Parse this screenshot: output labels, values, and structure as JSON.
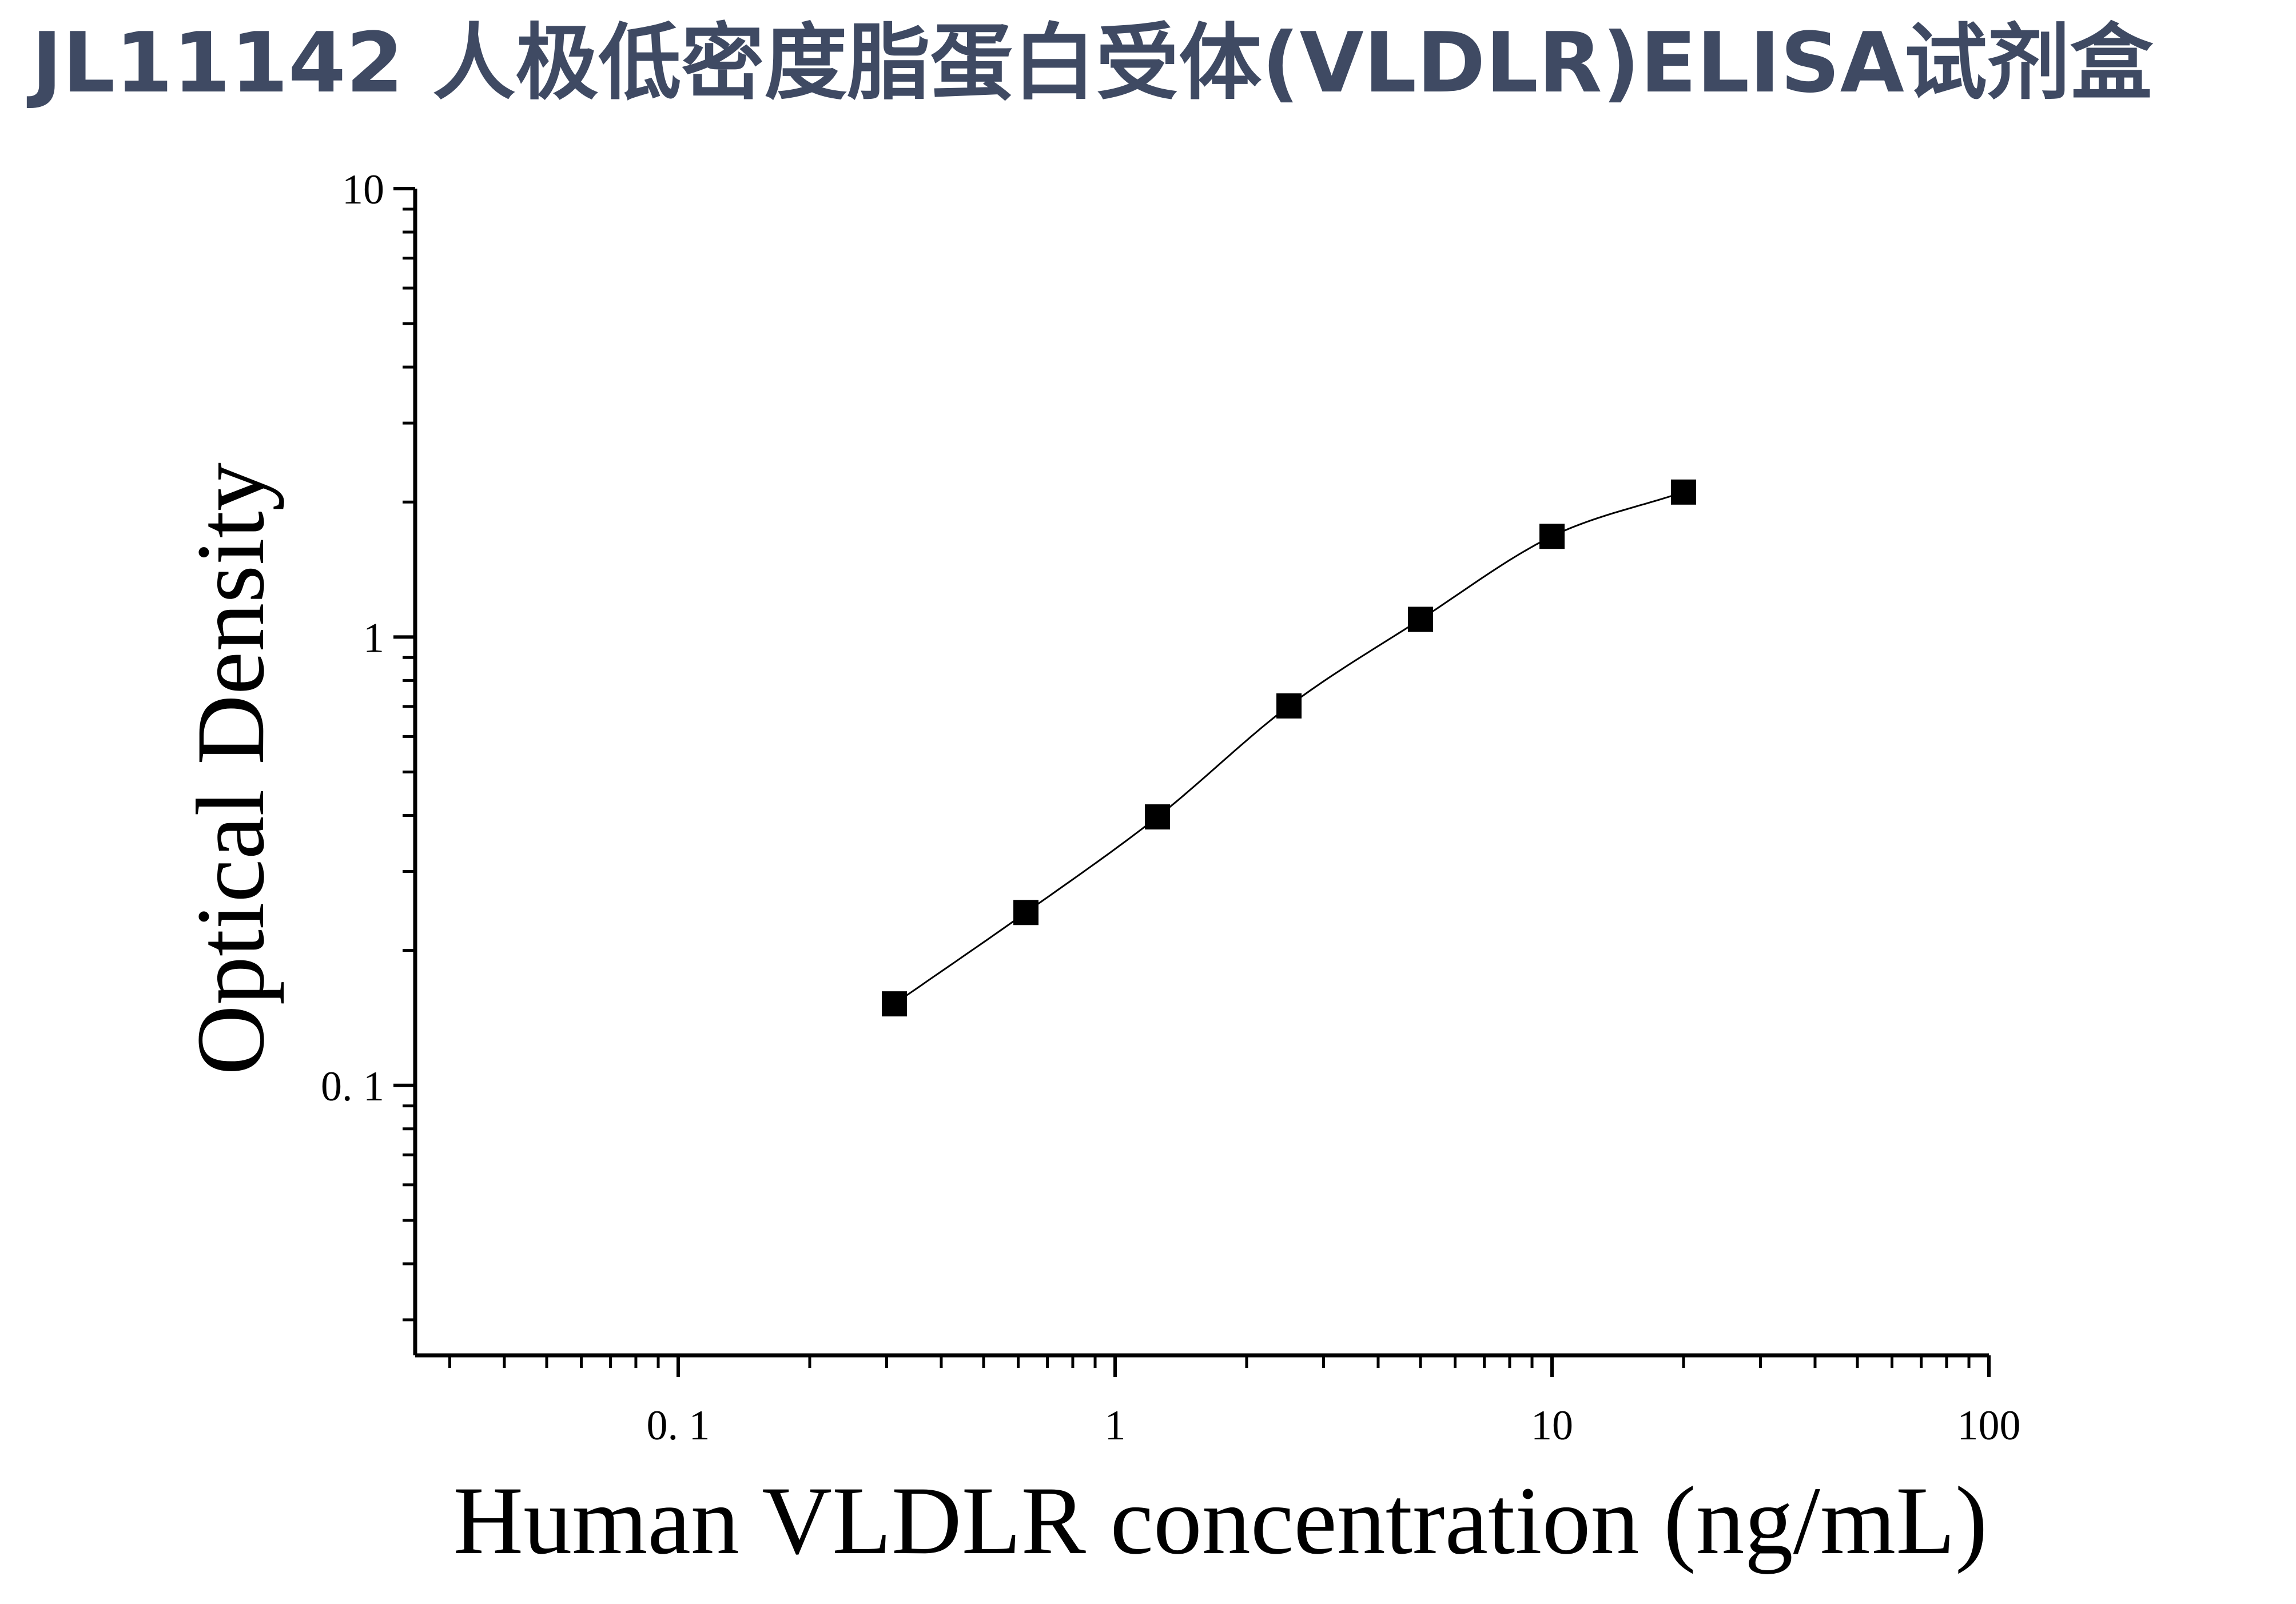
{
  "page": {
    "title": "JL11142 人极低密度脂蛋白受体(VLDLR)ELISA试剂盒",
    "title_color": "#3f4a63"
  },
  "chart_data": {
    "type": "scatter",
    "title": "",
    "xlabel": "Human VLDLR concentration (ng/mL)",
    "ylabel": "Optical Density",
    "xscale": "log",
    "yscale": "log",
    "xlim": [
      0.025,
      100
    ],
    "ylim": [
      0.025,
      10
    ],
    "x_ticks": [
      {
        "value": 0.1,
        "label": "0. 1"
      },
      {
        "value": 1,
        "label": "1"
      },
      {
        "value": 10,
        "label": "10"
      },
      {
        "value": 100,
        "label": "100"
      }
    ],
    "y_ticks": [
      {
        "value": 0.1,
        "label": "0. 1"
      },
      {
        "value": 1,
        "label": "1"
      },
      {
        "value": 10,
        "label": "10"
      }
    ],
    "grid": false,
    "legend": "none",
    "marker": "square",
    "series": [
      {
        "x": [
          0.3125,
          0.625,
          1.25,
          2.5,
          5,
          10,
          20
        ],
        "y": [
          0.152,
          0.243,
          0.397,
          0.702,
          1.095,
          1.677,
          2.105
        ],
        "fit": "smooth curve",
        "color": "#000000"
      }
    ]
  }
}
